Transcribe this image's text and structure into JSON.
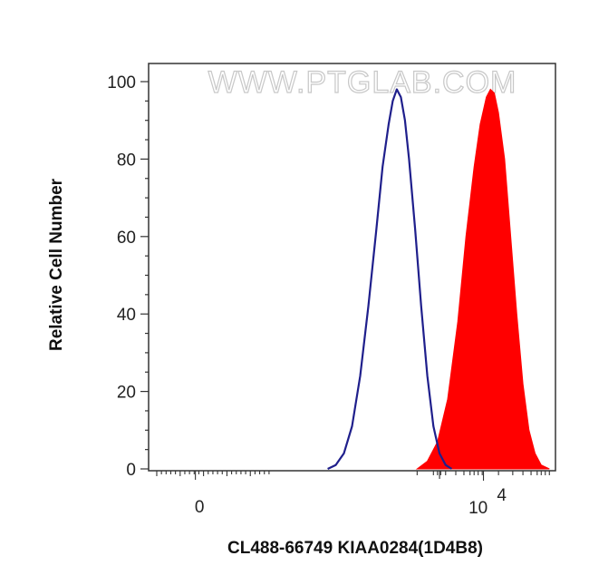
{
  "chart_data": {
    "type": "area",
    "title": "",
    "watermark": "WWW.PTGLAB.COM",
    "xlabel": "CL488-66749 KIAA0284(1D4B8)",
    "ylabel": "Relative Cell Number",
    "x_scale": "biexponential",
    "ylim": [
      0,
      100
    ],
    "y_ticks": [
      "0",
      "20",
      "40",
      "60",
      "80",
      "100"
    ],
    "x_tick_labels": {
      "zero": "0",
      "decade_base": "10",
      "decade_exp": "4"
    },
    "grid": false,
    "legend": "none",
    "series": [
      {
        "style": "outline",
        "color": "#1f1f8c",
        "points": [
          [
            0.44,
            0
          ],
          [
            0.46,
            1
          ],
          [
            0.48,
            4
          ],
          [
            0.5,
            11
          ],
          [
            0.52,
            24
          ],
          [
            0.54,
            42
          ],
          [
            0.56,
            62
          ],
          [
            0.575,
            78
          ],
          [
            0.59,
            89
          ],
          [
            0.6,
            95
          ],
          [
            0.61,
            98
          ],
          [
            0.62,
            96
          ],
          [
            0.63,
            90
          ],
          [
            0.64,
            80
          ],
          [
            0.655,
            62
          ],
          [
            0.67,
            42
          ],
          [
            0.685,
            24
          ],
          [
            0.7,
            11
          ],
          [
            0.715,
            4
          ],
          [
            0.73,
            1
          ],
          [
            0.745,
            0
          ]
        ]
      },
      {
        "style": "filled",
        "color": "#ff0000",
        "points": [
          [
            0.66,
            0
          ],
          [
            0.685,
            2
          ],
          [
            0.71,
            7
          ],
          [
            0.735,
            18
          ],
          [
            0.76,
            38
          ],
          [
            0.78,
            60
          ],
          [
            0.8,
            78
          ],
          [
            0.815,
            89
          ],
          [
            0.83,
            96
          ],
          [
            0.84,
            98
          ],
          [
            0.85,
            97
          ],
          [
            0.86,
            92
          ],
          [
            0.875,
            80
          ],
          [
            0.89,
            60
          ],
          [
            0.905,
            40
          ],
          [
            0.92,
            22
          ],
          [
            0.935,
            10
          ],
          [
            0.95,
            4
          ],
          [
            0.965,
            1
          ],
          [
            0.985,
            0
          ]
        ]
      }
    ]
  }
}
